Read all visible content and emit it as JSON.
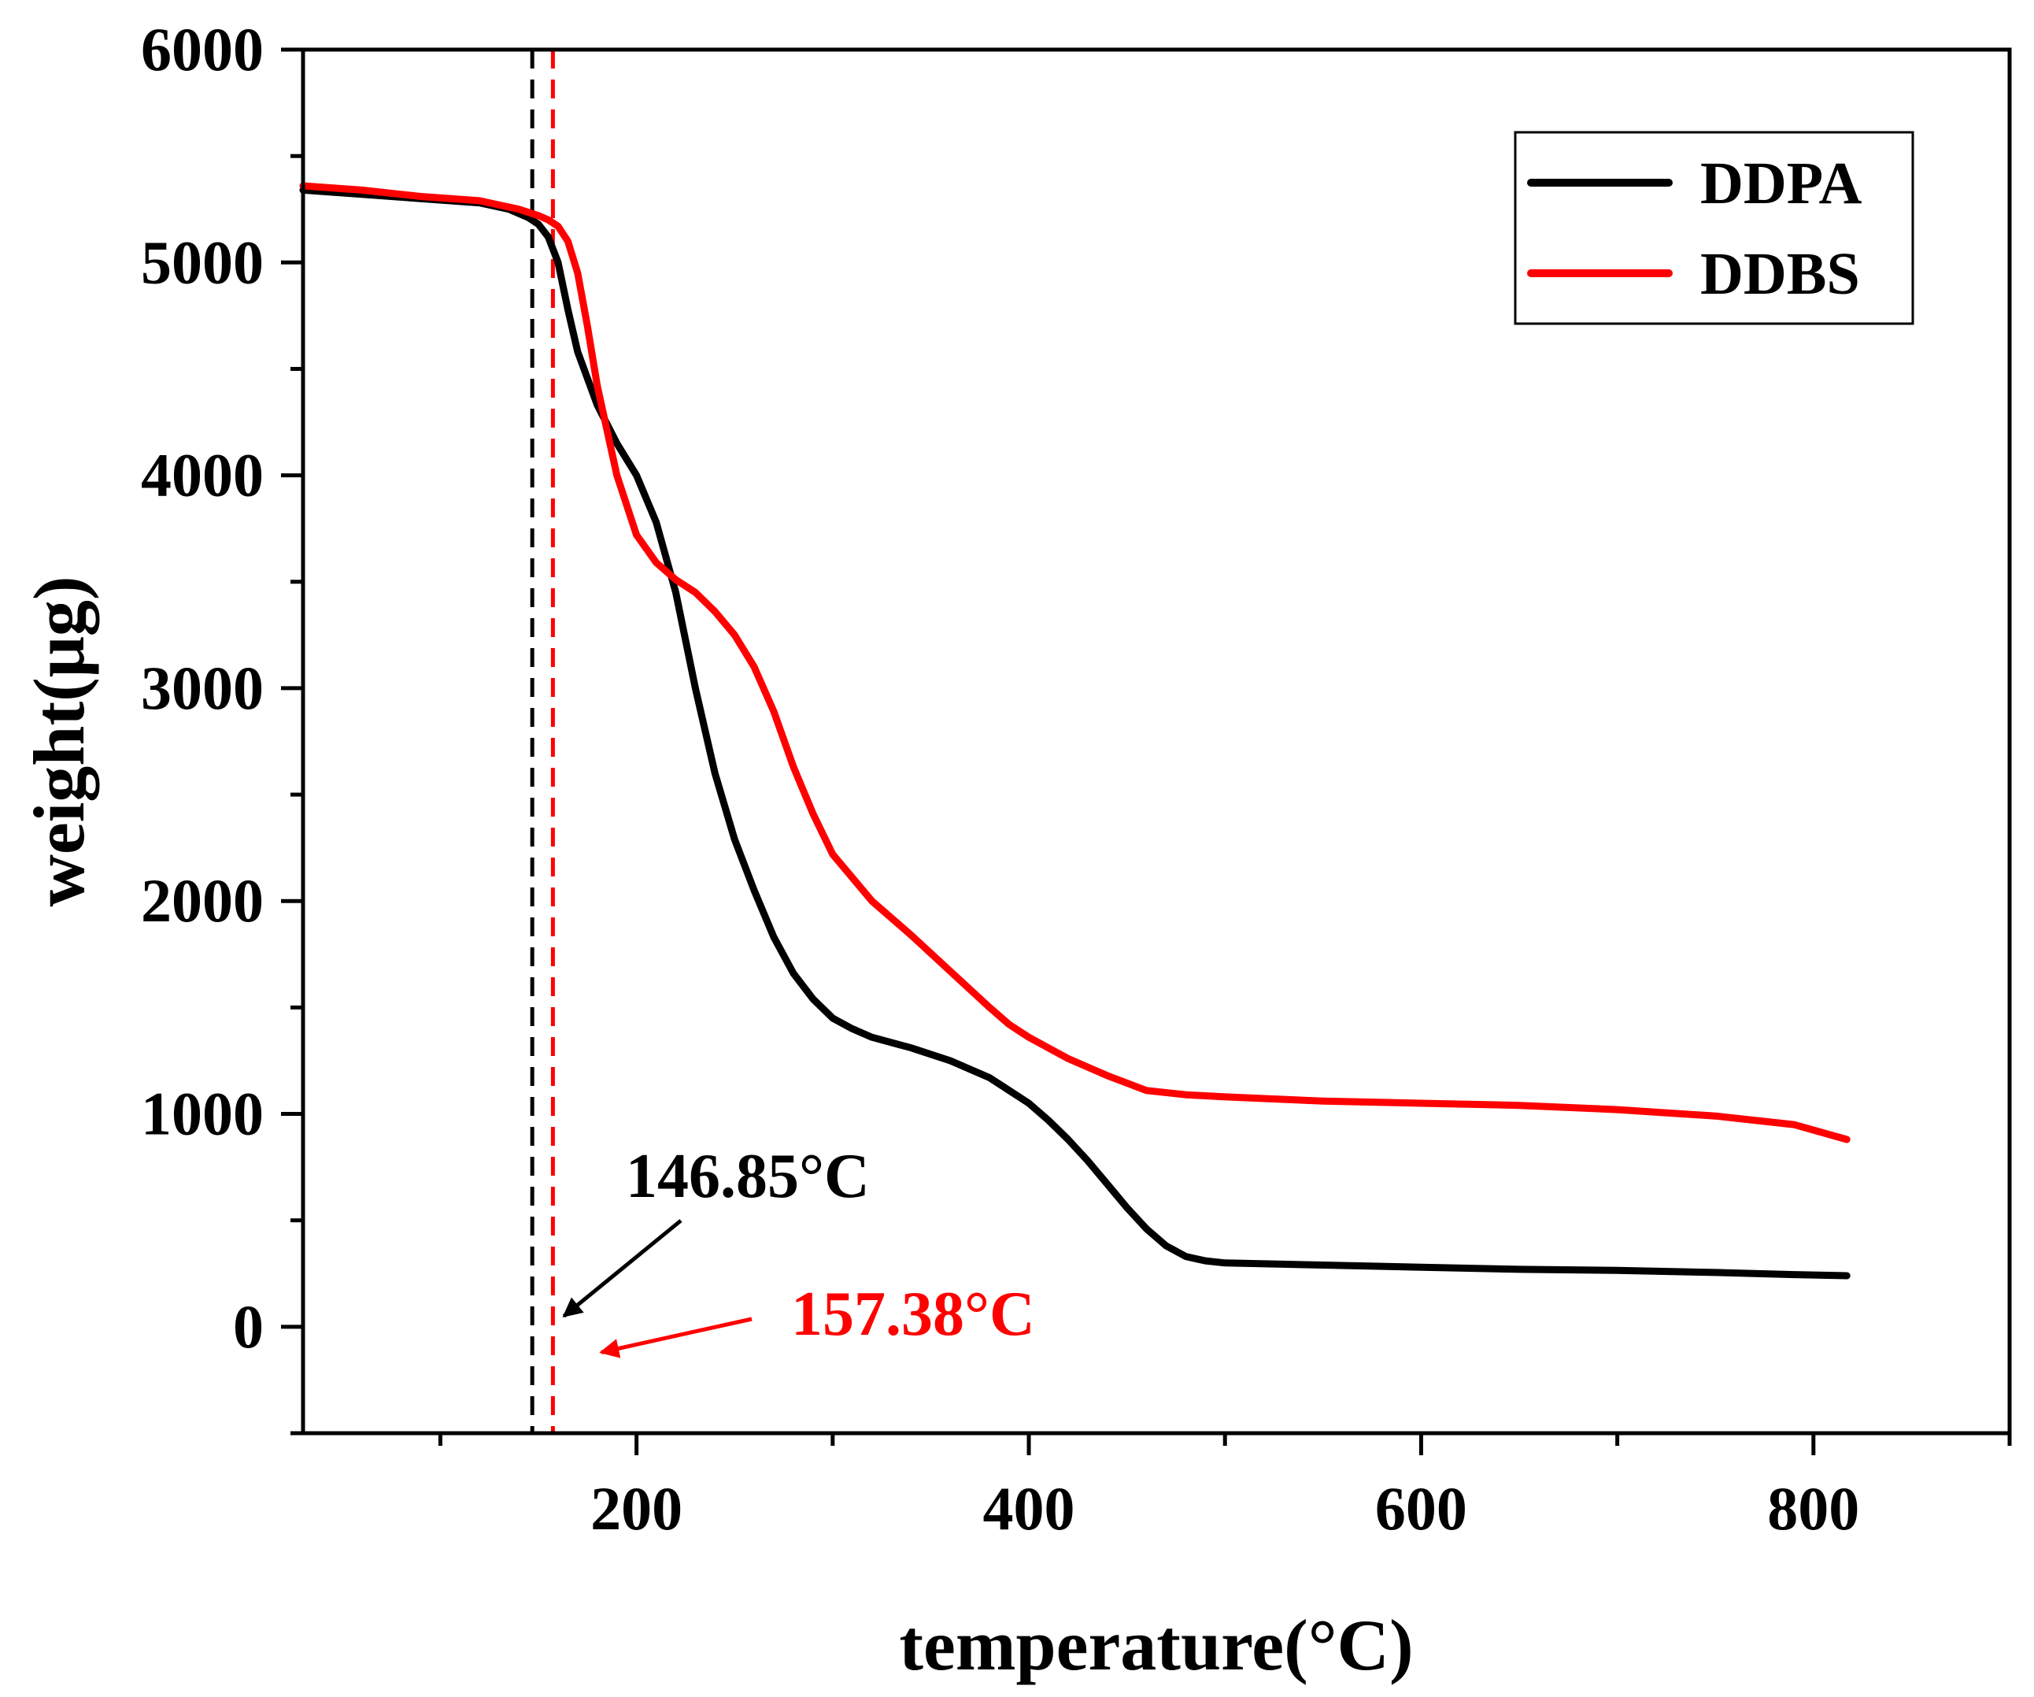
{
  "chart_data": {
    "type": "line",
    "title": "",
    "xlabel": "temperature(°C)",
    "ylabel": "weight(μg)",
    "xlim": [
      30,
      900
    ],
    "ylim": [
      -500,
      6000
    ],
    "x_ticks": [
      200,
      400,
      600,
      800
    ],
    "x_tick_labels": [
      "200",
      "400",
      "600",
      "800"
    ],
    "x_minor_ticks": [
      100,
      300,
      500,
      700,
      900
    ],
    "y_ticks": [
      0,
      1000,
      2000,
      3000,
      4000,
      5000,
      6000
    ],
    "y_tick_labels": [
      "0",
      "1000",
      "2000",
      "3000",
      "4000",
      "5000",
      "6000"
    ],
    "y_minor_ticks": [
      -500,
      500,
      1500,
      2500,
      3500,
      4500,
      5500
    ],
    "grid": false,
    "legend_position": "top-right",
    "series": [
      {
        "name": "DDPA",
        "color": "#000000",
        "x": [
          30,
          60,
          90,
          120,
          135,
          145,
          150,
          155,
          160,
          165,
          170,
          180,
          190,
          200,
          210,
          220,
          230,
          240,
          250,
          260,
          270,
          280,
          290,
          300,
          310,
          320,
          340,
          360,
          380,
          390,
          400,
          410,
          420,
          430,
          440,
          450,
          460,
          470,
          480,
          490,
          500,
          550,
          600,
          650,
          700,
          750,
          790,
          817
        ],
        "y": [
          5340,
          5320,
          5300,
          5280,
          5250,
          5210,
          5180,
          5120,
          5000,
          4780,
          4580,
          4330,
          4150,
          4000,
          3780,
          3450,
          3000,
          2600,
          2290,
          2050,
          1830,
          1660,
          1540,
          1450,
          1400,
          1360,
          1310,
          1250,
          1170,
          1110,
          1050,
          970,
          880,
          780,
          670,
          560,
          460,
          380,
          330,
          310,
          300,
          290,
          280,
          270,
          265,
          255,
          245,
          240
        ]
      },
      {
        "name": "DDBS",
        "color": "#ff0000",
        "x": [
          30,
          60,
          90,
          120,
          140,
          150,
          155,
          160,
          165,
          170,
          175,
          180,
          190,
          200,
          210,
          220,
          230,
          240,
          250,
          260,
          270,
          280,
          290,
          300,
          320,
          340,
          360,
          380,
          390,
          400,
          420,
          440,
          460,
          480,
          500,
          550,
          600,
          650,
          700,
          750,
          790,
          817
        ],
        "y": [
          5360,
          5340,
          5310,
          5290,
          5250,
          5220,
          5200,
          5170,
          5100,
          4950,
          4700,
          4420,
          4000,
          3720,
          3590,
          3510,
          3450,
          3360,
          3250,
          3100,
          2890,
          2630,
          2410,
          2220,
          2000,
          1840,
          1670,
          1500,
          1420,
          1360,
          1260,
          1180,
          1110,
          1090,
          1080,
          1060,
          1050,
          1040,
          1020,
          990,
          950,
          880
        ]
      }
    ],
    "vlines": [
      {
        "x": 146.85,
        "color": "#000000",
        "style": "dashed"
      },
      {
        "x": 157.38,
        "color": "#ff0000",
        "style": "dashed"
      }
    ],
    "annotations": [
      {
        "text": "146.85°C",
        "color": "#000000",
        "target_x": 163,
        "target_y": 50
      },
      {
        "text": "157.38°C",
        "color": "#ff0000",
        "target_x": 182,
        "target_y": -120
      }
    ]
  }
}
